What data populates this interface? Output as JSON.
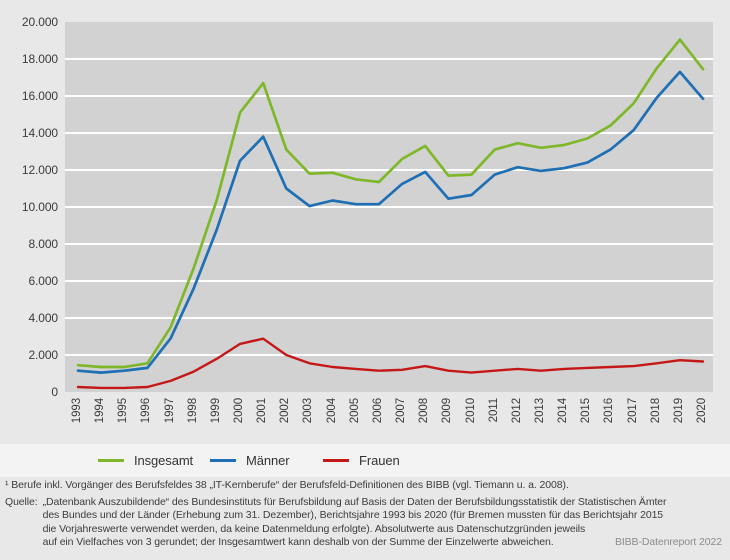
{
  "chart_data": {
    "type": "line",
    "categories": [
      "1993",
      "1994",
      "1995",
      "1996",
      "1997",
      "1998",
      "1999",
      "2000",
      "2001",
      "2002",
      "2003",
      "2004",
      "2005",
      "2006",
      "2007",
      "2008",
      "2009",
      "2010",
      "2011",
      "2012",
      "2013",
      "2014",
      "2015",
      "2016",
      "2017",
      "2018",
      "2019",
      "2020"
    ],
    "series": [
      {
        "name": "Insgesamt",
        "color": "#7eb82a",
        "values": [
          1450,
          1350,
          1350,
          1550,
          3500,
          6700,
          10400,
          15100,
          16700,
          13100,
          11800,
          11850,
          11500,
          11350,
          12600,
          13300,
          11700,
          11750,
          13100,
          13450,
          13200,
          13350,
          13700,
          14400,
          15600,
          17500,
          19050,
          17450
        ]
      },
      {
        "name": "Männer",
        "color": "#1e6fb4",
        "values": [
          1150,
          1050,
          1150,
          1300,
          2900,
          5600,
          8800,
          12500,
          13800,
          11000,
          10050,
          10350,
          10150,
          10150,
          11250,
          11900,
          10450,
          10650,
          11750,
          12150,
          11950,
          12100,
          12400,
          13100,
          14150,
          15900,
          17300,
          15850
        ]
      },
      {
        "name": "Frauen",
        "color": "#c41818",
        "values": [
          270,
          220,
          220,
          270,
          600,
          1100,
          1800,
          2600,
          2880,
          2000,
          1550,
          1350,
          1250,
          1150,
          1200,
          1400,
          1150,
          1050,
          1150,
          1250,
          1150,
          1250,
          1300,
          1350,
          1400,
          1550,
          1720,
          1650
        ]
      }
    ],
    "title": "",
    "xlabel": "",
    "ylabel": "",
    "ylim": [
      0,
      20000
    ],
    "y_tick_step": 2000,
    "grid": "horizontal white lines on gray plot",
    "legend_position": "bottom-left"
  },
  "axis": {
    "y_tick_labels": [
      "20.000",
      "18.000",
      "16.000",
      "14.000",
      "12.000",
      "10.000",
      "8.000",
      "6.000",
      "4.000",
      "2.000",
      "0"
    ]
  },
  "footnotes": {
    "line1": "¹ Berufe inkl. Vorgänger des Berufsfeldes 38 „IT-Kernberufe“ der Berufsfeld-Definitionen des BIBB (vgl. Tiemann u. a. 2008).",
    "source_label": "Quelle:",
    "source_lines": "„Datenbank Auszubildende“ des Bundesinstituts für Berufsbildung auf Basis der Daten der Berufsbildungsstatistik der Statistischen Ämter\ndes Bundes und der Länder (Erhebung zum 31. Dezember), Berichtsjahre 1993 bis 2020 (für Bremen mussten für das Berichtsjahr 2015\ndie Vorjahreswerte verwendet werden, da keine Datenmeldung erfolgte).  Absolutwerte aus Datenschutzgründen jeweils\nauf ein Vielfaches von 3 gerundet; der Insgesamtwert kann deshalb von der Summe der Einzelwerte abweichen."
  },
  "credit": "BIBB-Datenreport 2022",
  "colors": {
    "panel_bg": "#e8e8e8",
    "plot_bg": "#d2d2d2",
    "gridline": "#ffffff",
    "legend_band_bg": "#f3f3f3",
    "insgesamt": "#7eb82a",
    "maenner": "#1e6fb4",
    "frauen": "#c41818"
  }
}
